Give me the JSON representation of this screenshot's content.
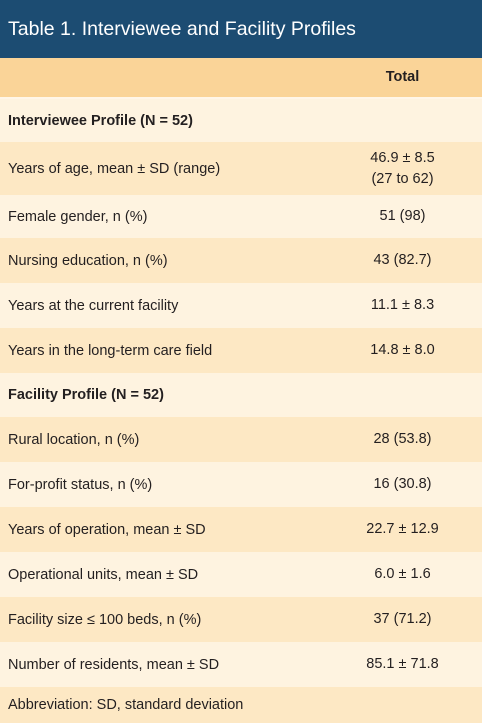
{
  "table": {
    "title": "Table 1. Interviewee and Facility Profiles",
    "column_header": "Total",
    "sections": [
      {
        "heading": "Interviewee Profile (N = 52)",
        "rows": [
          {
            "label": "Years of age, mean ± SD (range)",
            "value_line1": "46.9 ± 8.5",
            "value_line2": "(27 to 62)"
          },
          {
            "label": "Female gender, n (%)",
            "value_line1": "51 (98)"
          },
          {
            "label": "Nursing education, n (%)",
            "value_line1": "43 (82.7)"
          },
          {
            "label": "Years at the current facility",
            "value_line1": "11.1 ± 8.3"
          },
          {
            "label": "Years in the long-term care field",
            "value_line1": "14.8 ± 8.0"
          }
        ]
      },
      {
        "heading": "Facility Profile (N = 52)",
        "rows": [
          {
            "label": "Rural location, n (%)",
            "value_line1": "28 (53.8)"
          },
          {
            "label": "For-profit status, n (%)",
            "value_line1": "16 (30.8)"
          },
          {
            "label": "Years of operation, mean ± SD",
            "value_line1": "22.7 ± 12.9"
          },
          {
            "label": "Operational units, mean ± SD",
            "value_line1": "6.0 ± 1.6"
          },
          {
            "label": "Facility size ≤ 100 beds, n (%)",
            "value_line1": "37 (71.2)"
          },
          {
            "label": "Number of residents, mean ± SD",
            "value_line1": "85.1 ± 71.8"
          }
        ]
      }
    ],
    "footnote": "Abbreviation: SD, standard deviation"
  }
}
